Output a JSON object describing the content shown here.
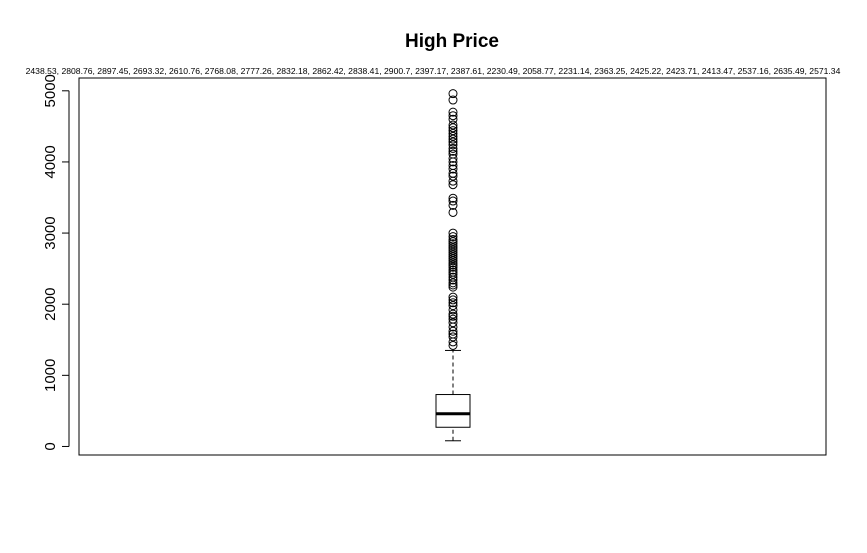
{
  "chart_data": {
    "type": "boxplot",
    "title": "High Price",
    "subtitle": "2438.53, 2808.76, 2897.45, 2693.32, 2610.76, 2768.08, 2777.26, 2832.18, 2862.42, 2838.41, 2900.7, 2397.17, 2387.61, 2230.49, 2058.77, 2231.14, 2363.25, 2425.22, 2423.71, 2413.47, 2537.16, 2635.49, 2571.34",
    "xlabel": "",
    "ylabel": "",
    "ylim": [
      -120,
      5180
    ],
    "yticks": [
      0,
      1000,
      2000,
      3000,
      4000,
      5000
    ],
    "box": {
      "lower_whisker": 80,
      "q1": 270,
      "median": 460,
      "q3": 730,
      "upper_whisker": 1350
    },
    "outliers": [
      1420,
      1470,
      1540,
      1580,
      1620,
      1680,
      1740,
      1790,
      1830,
      1860,
      1920,
      1980,
      2020,
      2060,
      2100,
      2240,
      2270,
      2300,
      2340,
      2380,
      2420,
      2450,
      2480,
      2520,
      2550,
      2580,
      2610,
      2640,
      2670,
      2700,
      2730,
      2760,
      2790,
      2820,
      2850,
      2880,
      2910,
      2950,
      3000,
      3290,
      3390,
      3450,
      3490,
      3680,
      3730,
      3800,
      3840,
      3900,
      3950,
      4000,
      4050,
      4110,
      4150,
      4190,
      4240,
      4280,
      4320,
      4360,
      4400,
      4440,
      4480,
      4520,
      4600,
      4650,
      4700,
      4870,
      4960
    ]
  }
}
